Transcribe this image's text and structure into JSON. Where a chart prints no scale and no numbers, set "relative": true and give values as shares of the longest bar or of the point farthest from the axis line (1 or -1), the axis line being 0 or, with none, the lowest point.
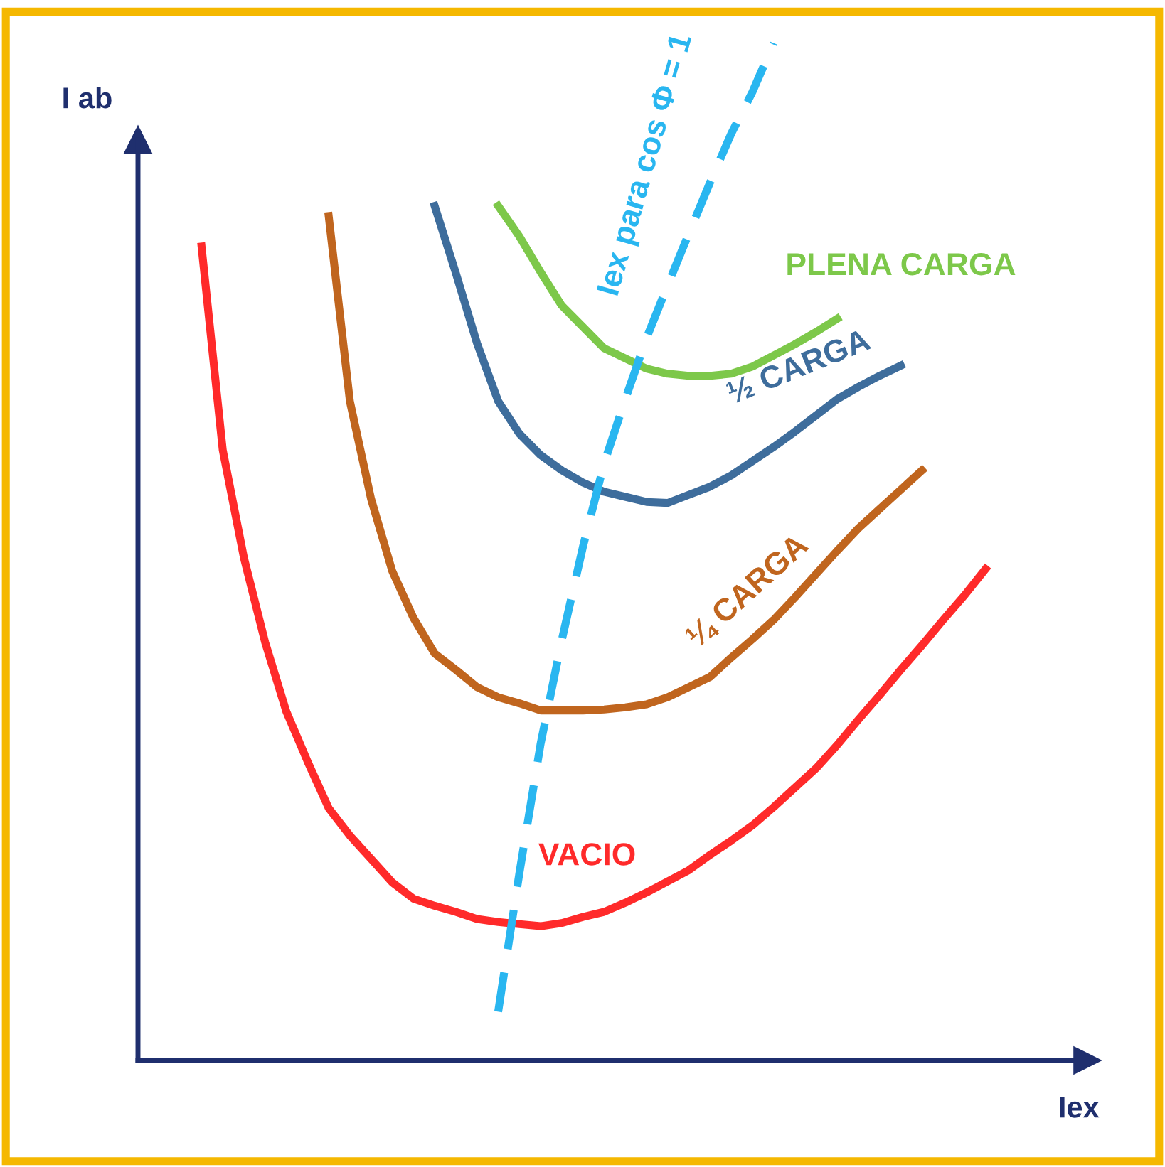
{
  "chart_data": {
    "type": "line",
    "relative": true,
    "xlabel": "Iex",
    "ylabel": "I ab",
    "legend": false,
    "marker": "none",
    "categories": [
      null,
      null,
      null,
      null,
      null,
      null,
      null,
      null,
      null,
      null,
      null,
      null,
      null,
      null,
      null,
      null,
      null,
      null,
      null,
      null,
      null,
      null,
      null,
      null,
      null,
      null,
      null,
      null,
      null,
      null,
      null,
      null,
      null,
      null,
      null,
      null,
      null,
      null,
      null,
      null,
      null
    ],
    "series": [
      {
        "name": "VACIO",
        "color": "#ff2a2a",
        "line_style": "solid",
        "values": [
          null,
          null,
          null,
          0.8,
          0.6,
          0.494,
          0.411,
          0.343,
          0.294,
          0.248,
          0.221,
          0.198,
          0.175,
          0.159,
          0.152,
          0.146,
          0.139,
          0.136,
          0.134,
          0.132,
          0.135,
          0.141,
          0.146,
          0.155,
          0.165,
          0.176,
          0.187,
          0.202,
          0.216,
          0.231,
          0.249,
          0.268,
          0.287,
          0.31,
          0.335,
          0.359,
          0.384,
          0.408,
          0.433,
          0.457,
          0.483
        ]
      },
      {
        "name": "¼ CARGA",
        "color": "#c0651e",
        "line_style": "solid",
        "values": [
          null,
          null,
          null,
          null,
          null,
          null,
          null,
          null,
          null,
          0.83,
          0.648,
          0.552,
          0.481,
          0.435,
          0.4,
          0.384,
          0.367,
          0.357,
          0.351,
          0.344,
          0.344,
          0.344,
          0.345,
          0.347,
          0.35,
          0.357,
          0.367,
          0.377,
          0.396,
          0.414,
          0.433,
          0.455,
          0.478,
          0.501,
          0.523,
          0.542,
          0.561,
          0.58,
          null,
          null,
          null
        ]
      },
      {
        "name": "½ CARGA",
        "color": "#3e6d9c",
        "line_style": "solid",
        "values": [
          null,
          null,
          null,
          null,
          null,
          null,
          null,
          null,
          null,
          null,
          null,
          null,
          null,
          null,
          0.84,
          0.774,
          0.705,
          0.648,
          0.616,
          0.595,
          0.58,
          0.568,
          0.559,
          0.554,
          0.549,
          0.548,
          0.556,
          0.564,
          0.575,
          0.589,
          0.603,
          0.618,
          0.634,
          0.65,
          0.662,
          0.673,
          0.683,
          null,
          null,
          null,
          null
        ]
      },
      {
        "name": "PLENA CARGA",
        "color": "#7dc84a",
        "line_style": "solid",
        "values": [
          null,
          null,
          null,
          null,
          null,
          null,
          null,
          null,
          null,
          null,
          null,
          null,
          null,
          null,
          null,
          null,
          null,
          0.84,
          0.81,
          0.775,
          0.742,
          0.721,
          0.7,
          0.69,
          0.68,
          0.675,
          0.673,
          0.673,
          0.675,
          0.682,
          0.693,
          0.704,
          0.716,
          0.729,
          null,
          null,
          null,
          null,
          null,
          null,
          null
        ]
      },
      {
        "name": "Iex para cos Φ = 1",
        "color": "#29b6f0",
        "line_style": "dashed",
        "values": [
          null,
          null,
          null,
          null,
          null,
          null,
          null,
          null,
          null,
          null,
          null,
          null,
          null,
          null,
          null,
          null,
          null,
          0.048,
          0.184,
          0.311,
          0.413,
          0.505,
          0.587,
          0.65,
          0.71,
          0.762,
          0.813,
          0.863,
          0.911,
          0.952,
          1.0,
          null,
          null,
          null,
          null,
          null,
          null,
          null,
          null,
          null,
          null
        ]
      }
    ]
  }
}
